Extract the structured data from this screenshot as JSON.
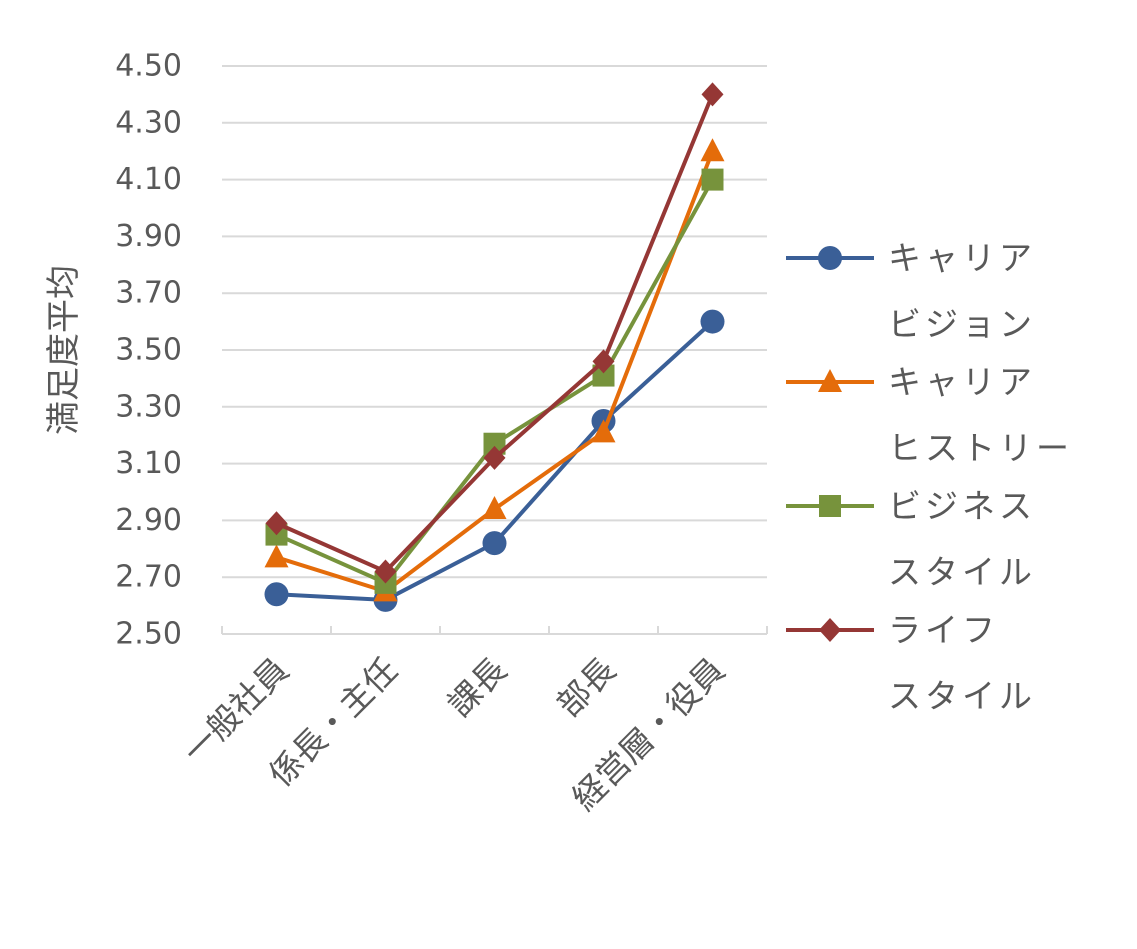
{
  "chart_data": {
    "type": "line",
    "title": "",
    "xlabel": "",
    "ylabel": "満足度平均",
    "ylim": [
      2.5,
      4.5
    ],
    "yticks": [
      "2.50",
      "2.70",
      "2.90",
      "3.10",
      "3.30",
      "3.50",
      "3.70",
      "3.90",
      "4.10",
      "4.30",
      "4.50"
    ],
    "categories": [
      "一般社員",
      "係長・主任",
      "課長",
      "部長",
      "経営層・役員"
    ],
    "grid": true,
    "legend_position": "right",
    "series": [
      {
        "name": "キャリアビジョン",
        "legend_lines": [
          "キャリア",
          "ビジョン"
        ],
        "color": "#3a5f97",
        "marker": "circle",
        "values": [
          2.64,
          2.62,
          2.82,
          3.25,
          3.6
        ]
      },
      {
        "name": "キャリアヒストリー",
        "legend_lines": [
          "キャリア",
          "ヒストリー"
        ],
        "color": "#e46c0a",
        "marker": "triangle",
        "values": [
          2.77,
          2.65,
          2.94,
          3.21,
          4.2
        ]
      },
      {
        "name": "ビジネススタイル",
        "legend_lines": [
          "ビジネス",
          "スタイル"
        ],
        "color": "#77933c",
        "marker": "square",
        "values": [
          2.85,
          2.68,
          3.17,
          3.41,
          4.1
        ]
      },
      {
        "name": "ライフスタイル",
        "legend_lines": [
          "ライフ",
          "スタイル"
        ],
        "color": "#953735",
        "marker": "diamond",
        "values": [
          2.89,
          2.72,
          3.12,
          3.46,
          4.4
        ]
      }
    ]
  }
}
